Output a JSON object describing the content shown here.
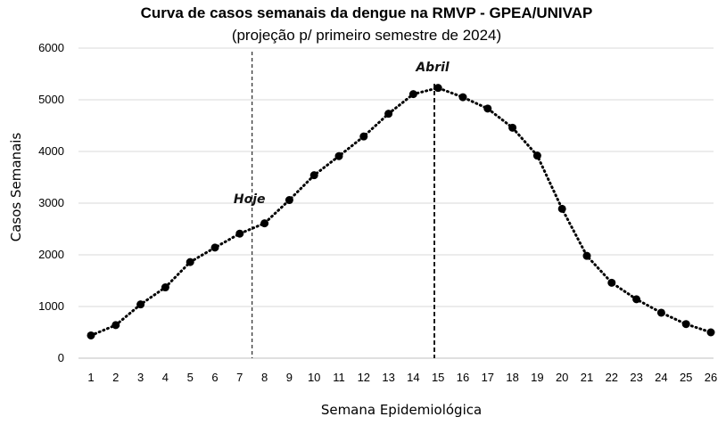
{
  "chart_data": {
    "type": "line",
    "title": "Curva de casos semanais da dengue na RMVP - GPEA/UNIVAP",
    "subtitle": "(projeção p/ primeiro semestre de 2024)",
    "xlabel": "Semana Epidemiológica",
    "ylabel": "Casos Semanais",
    "ylim": [
      0,
      6000
    ],
    "yticks": [
      "0",
      "1000",
      "2000",
      "3000",
      "4000",
      "5000",
      "6000"
    ],
    "x": [
      1,
      2,
      3,
      4,
      5,
      6,
      7,
      8,
      9,
      10,
      11,
      12,
      13,
      14,
      15,
      16,
      17,
      18,
      19,
      20,
      21,
      22,
      23,
      24,
      25,
      26
    ],
    "x_tick_labels": [
      "1",
      "2",
      "3",
      "4",
      "5",
      "6",
      "7",
      "8",
      "9",
      "10",
      "11",
      "12",
      "13",
      "14",
      "15",
      "16",
      "17",
      "18",
      "19",
      "20",
      "21",
      "22",
      "23",
      "24",
      "25",
      "26"
    ],
    "series": [
      {
        "values": [
          440,
          640,
          1040,
          1370,
          1860,
          2140,
          2410,
          2610,
          3060,
          3540,
          3910,
          4290,
          4730,
          5110,
          5230,
          5050,
          4830,
          4460,
          3920,
          2890,
          1980,
          1460,
          1140,
          880,
          660,
          500
        ],
        "color": "#000000",
        "line_style": "dotted",
        "marker": "circle"
      }
    ],
    "grid": true,
    "grid_color": "#d9d9d9",
    "annotations": [
      {
        "text": "Hoje",
        "x": 7.5,
        "line_style": "dashed"
      },
      {
        "text": "Abril",
        "x": 14.85,
        "line_style": "dashed"
      }
    ]
  }
}
